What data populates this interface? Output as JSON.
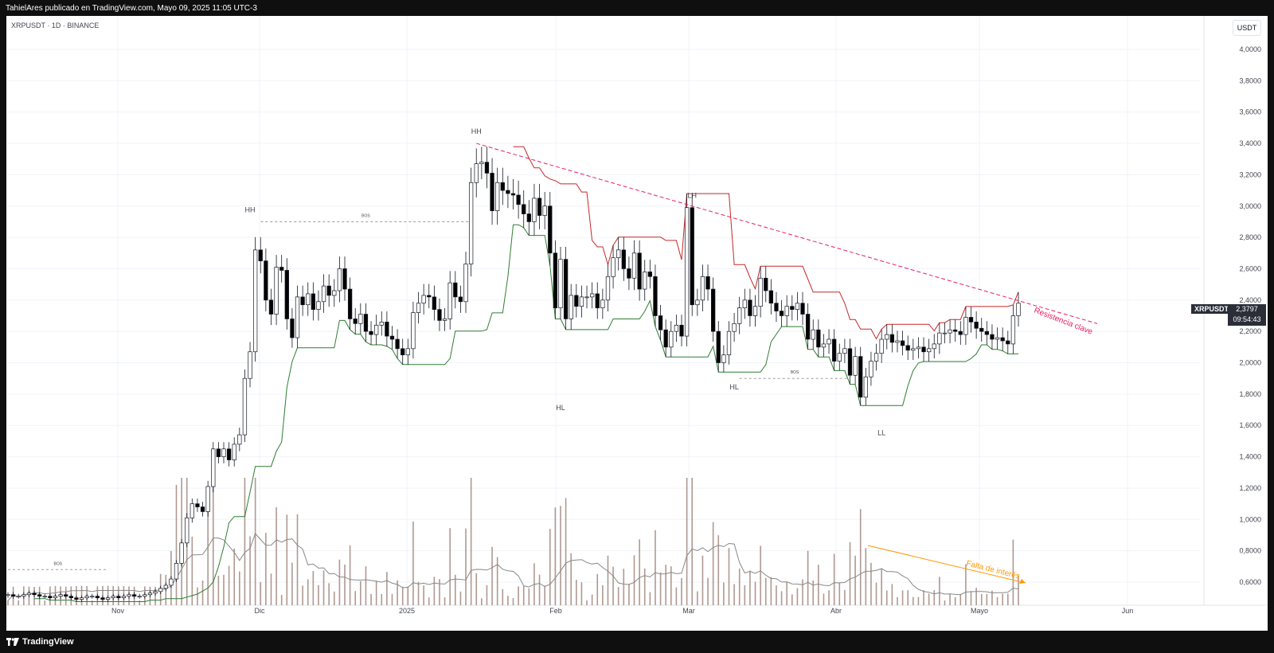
{
  "header": {
    "publish_text": "TahielAres publicado en TradingView.com, Mayo 09, 2025 11:05 UTC-3"
  },
  "footer": {
    "brand": "TradingView"
  },
  "chart_meta": {
    "symbol_title": "XRPUSDT · 1D · BINANCE",
    "currency": "USDT",
    "price_tag": {
      "symbol": "XRPUSDT",
      "price": "2,3797",
      "countdown": "09:54:43"
    }
  },
  "colors": {
    "up": "#ffffff",
    "down": "#000000",
    "wick": "#131722",
    "support": "#2e7d32",
    "resistance": "#c62828",
    "trend": "#e91e63",
    "volume": "#8d6e63",
    "volume_ma": "#888888",
    "arrow": "#ff9800",
    "grid": "#f0f3fa",
    "label": "#434651"
  },
  "chart_data": {
    "type": "candlestick",
    "y_ticks": [
      "4,0000",
      "3,8000",
      "3,6000",
      "3,4000",
      "3,2000",
      "3,0000",
      "2,8000",
      "2,6000",
      "2,4000",
      "2,2000",
      "2,0000",
      "1,8000",
      "1,6000",
      "1,4000",
      "1,2000",
      "1,0000",
      "0,8000",
      "0,6000"
    ],
    "x_ticks": [
      "Nov",
      "Dic",
      "2025",
      "Feb",
      "Mar",
      "Abr",
      "Mayo",
      "Jun"
    ],
    "candle_close": [
      0.52,
      0.51,
      0.51,
      0.52,
      0.53,
      0.52,
      0.51,
      0.51,
      0.5,
      0.51,
      0.52,
      0.51,
      0.5,
      0.49,
      0.5,
      0.51,
      0.51,
      0.5,
      0.49,
      0.5,
      0.51,
      0.5,
      0.51,
      0.52,
      0.51,
      0.51,
      0.52,
      0.53,
      0.54,
      0.56,
      0.58,
      0.62,
      0.72,
      0.85,
      1.01,
      1.1,
      1.08,
      1.05,
      1.21,
      1.45,
      1.4,
      1.45,
      1.38,
      1.48,
      1.54,
      1.9,
      2.07,
      2.72,
      2.65,
      2.4,
      2.31,
      2.61,
      2.59,
      2.28,
      2.16,
      2.42,
      2.37,
      2.44,
      2.34,
      2.39,
      2.49,
      2.43,
      2.46,
      2.6,
      2.47,
      2.28,
      2.25,
      2.31,
      2.2,
      2.18,
      2.24,
      2.26,
      2.17,
      2.15,
      2.09,
      2.05,
      2.09,
      2.32,
      2.38,
      2.43,
      2.42,
      2.34,
      2.27,
      2.28,
      2.51,
      2.42,
      2.39,
      2.63,
      3.15,
      3.27,
      3.28,
      3.21,
      2.97,
      3.15,
      3.1,
      3.08,
      3.07,
      3.01,
      2.95,
      2.9,
      3.05,
      2.94,
      3.0,
      2.7,
      2.35,
      2.66,
      2.28,
      2.43,
      2.36,
      2.42,
      2.42,
      2.44,
      2.35,
      2.4,
      2.55,
      2.67,
      2.72,
      2.6,
      2.54,
      2.7,
      2.47,
      2.58,
      2.55,
      2.3,
      2.21,
      2.1,
      2.2,
      2.24,
      2.17,
      2.99,
      2.37,
      2.4,
      2.55,
      2.47,
      2.2,
      2.0,
      2.05,
      2.2,
      2.25,
      2.35,
      2.4,
      2.3,
      2.36,
      2.54,
      2.46,
      2.38,
      2.33,
      2.3,
      2.36,
      2.34,
      2.38,
      2.31,
      2.15,
      2.21,
      2.1,
      2.12,
      2.15,
      2.01,
      2.06,
      2.09,
      1.92,
      2.04,
      1.78,
      1.91,
      2.01,
      2.06,
      2.15,
      2.18,
      2.13,
      2.14,
      2.11,
      2.08,
      2.09,
      2.1,
      2.07,
      2.09,
      2.12,
      2.19,
      2.19,
      2.21,
      2.2,
      2.18,
      2.29,
      2.26,
      2.22,
      2.2,
      2.18,
      2.15,
      2.16,
      2.14,
      2.12,
      2.3,
      2.38
    ],
    "events": [
      {
        "label": "HH",
        "value": 2.9
      },
      {
        "label": "HH",
        "value": 3.4
      },
      {
        "label": "LH",
        "value": 2.99
      },
      {
        "label": "HL",
        "value": 1.77
      },
      {
        "label": "HL",
        "value": 1.9
      },
      {
        "label": "LL",
        "value": 1.61
      }
    ],
    "bos_labels": [
      "BOS",
      "BOS",
      "BOS"
    ],
    "annotations": [
      "Resistencia clave",
      "Falta de interés"
    ]
  }
}
